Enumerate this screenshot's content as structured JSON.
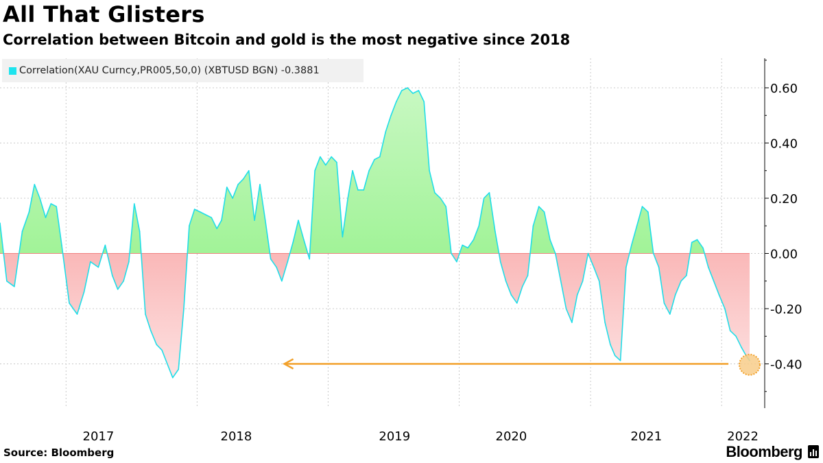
{
  "header": {
    "title": "All That Glisters",
    "subtitle": "Correlation between Bitcoin and gold is the most negative since 2018"
  },
  "legend": {
    "label": "Correlation(XAU Curncy,PR005,50,0) (XBTUSD BGN) -0.3881"
  },
  "footer": {
    "source": "Source: Bloomberg",
    "brand": "Bloomberg"
  },
  "colors": {
    "positive_fill_top": "#c6f7c0",
    "positive_fill_bottom": "#84ef78",
    "negative_fill_top": "#f68080",
    "negative_fill_bottom": "#fce0e0",
    "line": "#1fdde8",
    "arrow": "#f2a12b",
    "grid": "#c8c8c8"
  },
  "chart_data": {
    "type": "area",
    "title": "All That Glisters",
    "subtitle": "Correlation between Bitcoin and gold is the most negative since 2018",
    "xlabel": "",
    "ylabel": "",
    "xlim": [
      "2016-07-01",
      "2022-05-01"
    ],
    "ylim": [
      -0.5,
      0.7
    ],
    "x_tick_labels": [
      "2017",
      "2018",
      "2019",
      "2020",
      "2021",
      "2022"
    ],
    "y_tick_labels": [
      "0.60",
      "0.40",
      "0.20",
      "0.00",
      "-0.20",
      "-0.40"
    ],
    "y_ticks": [
      0.6,
      0.4,
      0.2,
      0.0,
      -0.2,
      -0.4
    ],
    "grid": true,
    "legend_position": "top-left",
    "series": [
      {
        "name": "Correlation(XAU Curncy,PR005,50,0) (XBTUSD BGN)",
        "last_value": -0.3881,
        "x": [
          "2016-07-01",
          "2016-07-20",
          "2016-08-10",
          "2016-09-01",
          "2016-09-20",
          "2016-10-05",
          "2016-10-20",
          "2016-11-05",
          "2016-11-20",
          "2016-12-05",
          "2016-12-20",
          "2017-01-10",
          "2017-02-01",
          "2017-02-20",
          "2017-03-10",
          "2017-04-01",
          "2017-04-20",
          "2017-05-10",
          "2017-05-25",
          "2017-06-10",
          "2017-06-25",
          "2017-07-10",
          "2017-07-25",
          "2017-08-10",
          "2017-08-25",
          "2017-09-10",
          "2017-09-25",
          "2017-10-10",
          "2017-10-25",
          "2017-11-10",
          "2017-11-25",
          "2017-12-10",
          "2017-12-25",
          "2018-01-10",
          "2018-01-25",
          "2018-02-10",
          "2018-02-25",
          "2018-03-10",
          "2018-03-25",
          "2018-04-10",
          "2018-04-25",
          "2018-05-10",
          "2018-05-25",
          "2018-06-10",
          "2018-06-25",
          "2018-07-10",
          "2018-07-25",
          "2018-08-10",
          "2018-08-25",
          "2018-09-10",
          "2018-09-25",
          "2018-10-10",
          "2018-10-25",
          "2018-11-10",
          "2018-11-25",
          "2018-12-10",
          "2018-12-25",
          "2019-01-10",
          "2019-01-25",
          "2019-02-10",
          "2019-02-25",
          "2019-03-10",
          "2019-03-25",
          "2019-04-10",
          "2019-04-25",
          "2019-05-10",
          "2019-05-25",
          "2019-06-10",
          "2019-06-25",
          "2019-07-10",
          "2019-07-25",
          "2019-08-10",
          "2019-08-25",
          "2019-09-10",
          "2019-09-25",
          "2019-10-10",
          "2019-10-25",
          "2019-11-10",
          "2019-11-25",
          "2019-12-10",
          "2019-12-25",
          "2020-01-10",
          "2020-01-25",
          "2020-02-10",
          "2020-02-25",
          "2020-03-10",
          "2020-03-25",
          "2020-04-10",
          "2020-04-25",
          "2020-05-10",
          "2020-05-25",
          "2020-06-10",
          "2020-06-25",
          "2020-07-10",
          "2020-07-25",
          "2020-08-10",
          "2020-08-25",
          "2020-09-10",
          "2020-09-25",
          "2020-10-10",
          "2020-10-25",
          "2020-11-10",
          "2020-11-25",
          "2020-12-10",
          "2020-12-25",
          "2021-01-10",
          "2021-01-25",
          "2021-02-10",
          "2021-02-25",
          "2021-03-10",
          "2021-03-25",
          "2021-04-10",
          "2021-04-25",
          "2021-05-10",
          "2021-05-25",
          "2021-06-10",
          "2021-06-25",
          "2021-07-10",
          "2021-07-25",
          "2021-08-10",
          "2021-08-25",
          "2021-09-10",
          "2021-09-25",
          "2021-10-10",
          "2021-10-25",
          "2021-11-10",
          "2021-11-25",
          "2021-12-10",
          "2021-12-25",
          "2022-01-10",
          "2022-01-25",
          "2022-02-10",
          "2022-02-25",
          "2022-03-10",
          "2022-03-20"
        ],
        "values": [
          0.11,
          -0.1,
          -0.12,
          0.08,
          0.15,
          0.25,
          0.2,
          0.13,
          0.18,
          0.17,
          0.03,
          -0.18,
          -0.22,
          -0.14,
          -0.03,
          -0.05,
          0.03,
          -0.08,
          -0.13,
          -0.1,
          -0.03,
          0.18,
          0.08,
          -0.22,
          -0.28,
          -0.33,
          -0.35,
          -0.4,
          -0.45,
          -0.42,
          -0.2,
          0.1,
          0.16,
          0.15,
          0.14,
          0.13,
          0.09,
          0.12,
          0.24,
          0.2,
          0.25,
          0.27,
          0.3,
          0.12,
          0.25,
          0.12,
          -0.02,
          -0.05,
          -0.1,
          -0.03,
          0.04,
          0.12,
          0.05,
          -0.02,
          0.3,
          0.35,
          0.32,
          0.35,
          0.33,
          0.06,
          0.2,
          0.3,
          0.23,
          0.23,
          0.3,
          0.34,
          0.35,
          0.44,
          0.5,
          0.55,
          0.59,
          0.6,
          0.58,
          0.59,
          0.55,
          0.3,
          0.22,
          0.2,
          0.17,
          0.0,
          -0.03,
          0.03,
          0.02,
          0.05,
          0.1,
          0.2,
          0.22,
          0.08,
          -0.03,
          -0.1,
          -0.15,
          -0.18,
          -0.12,
          -0.08,
          0.1,
          0.17,
          0.15,
          0.05,
          0.0,
          -0.1,
          -0.2,
          -0.25,
          -0.15,
          -0.1,
          0.0,
          -0.05,
          -0.1,
          -0.25,
          -0.33,
          -0.37,
          -0.3881,
          -0.05,
          0.03,
          0.1,
          0.17,
          0.15,
          0.0,
          -0.05,
          -0.18,
          -0.22,
          -0.15,
          -0.1,
          -0.08,
          0.04,
          0.05,
          0.02,
          -0.05,
          -0.1,
          -0.15,
          -0.2,
          -0.28,
          -0.3,
          -0.34,
          -0.37,
          -0.3881
        ]
      }
    ],
    "annotations": [
      {
        "type": "arrow",
        "from_x": "2022-01-20",
        "to_x": "2018-09-01",
        "y": -0.4
      },
      {
        "type": "marker",
        "x": "2022-03-20",
        "y": -0.3881
      }
    ]
  }
}
